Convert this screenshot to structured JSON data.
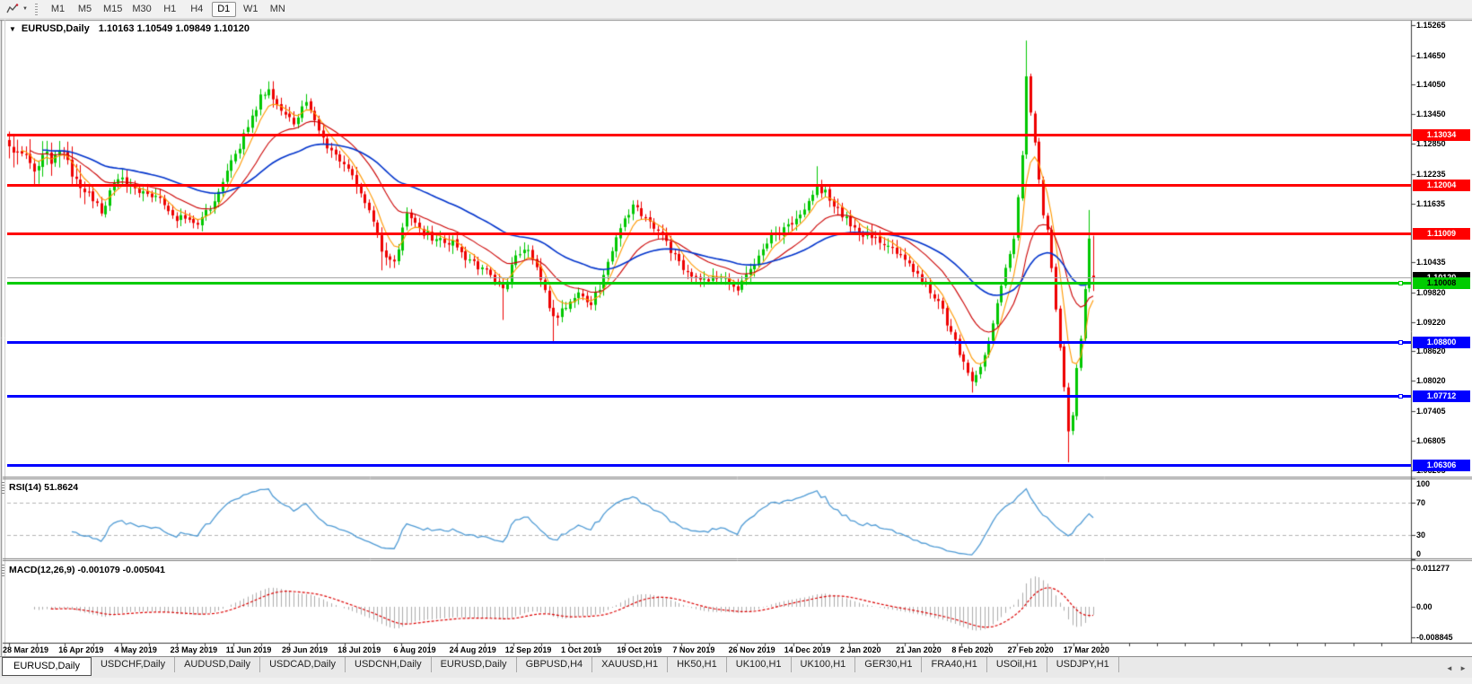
{
  "colors": {
    "up": "#00C800",
    "down": "#EE0000",
    "ma_fast": "#FF9900",
    "ma_mid": "#CC0000",
    "ma_slow": "#0033CC",
    "rsi": "#4F9BD5",
    "macd_hist": "#ADADAD",
    "macd_signal": "#DD0000",
    "level_red": "#FF0000",
    "level_green": "#00CC00",
    "level_blue": "#0000FF"
  },
  "toolbar": {
    "timeframes": [
      "M1",
      "M5",
      "M15",
      "M30",
      "H1",
      "H4",
      "D1",
      "W1",
      "MN"
    ],
    "active": "D1",
    "dropdown_glyph": "▼"
  },
  "chart_header": {
    "symbol_period": "EURUSD,Daily",
    "ohlc": "1.10163 1.10549 1.09849 1.10120",
    "collapse_glyph": "▼"
  },
  "price_axis": {
    "ticks": [
      "1.15265",
      "1.14650",
      "1.14050",
      "1.13450",
      "1.12850",
      "1.12235",
      "1.11635",
      "1.10435",
      "1.09820",
      "1.09220",
      "1.08620",
      "1.08020",
      "1.07405",
      "1.06805",
      "1.06205"
    ]
  },
  "current_price": {
    "label": "1.10120",
    "value": 1.1012
  },
  "levels": [
    {
      "price": "1.13034",
      "value": 1.13034,
      "color": "red",
      "handle": false
    },
    {
      "price": "1.12004",
      "value": 1.12004,
      "color": "red",
      "handle": false
    },
    {
      "price": "1.11009",
      "value": 1.11009,
      "color": "red",
      "handle": false
    },
    {
      "price": "1.10008",
      "value": 1.10008,
      "color": "green",
      "handle": true
    },
    {
      "price": "1.08800",
      "value": 1.088,
      "color": "blue",
      "handle": true
    },
    {
      "price": "1.07712",
      "value": 1.07712,
      "color": "blue",
      "handle": true
    },
    {
      "price": "1.06306",
      "value": 1.06306,
      "color": "blue",
      "handle": false
    }
  ],
  "rsi_panel": {
    "name": "RSI(14)",
    "value": "51.8624",
    "ticks": [
      {
        "label": "100",
        "v": 100
      },
      {
        "label": "70",
        "v": 70
      },
      {
        "label": "30",
        "v": 30
      },
      {
        "label": "0",
        "v": 0
      }
    ]
  },
  "macd_panel": {
    "name": "MACD(12,26,9)",
    "values": "-0.001079 -0.005041",
    "ticks": [
      {
        "label": "0.011277",
        "v": 0.011277
      },
      {
        "label": "0.00",
        "v": 0
      },
      {
        "label": "-0.008845",
        "v": -0.008845
      }
    ]
  },
  "tabs": {
    "items": [
      "EURUSD,Daily",
      "USDCHF,Daily",
      "AUDUSD,Daily",
      "USDCAD,Daily",
      "USDCNH,Daily",
      "EURUSD,Daily",
      "GBPUSD,H4",
      "XAUUSD,H1",
      "HK50,H1",
      "UK100,H1",
      "UK100,H1",
      "GER30,H1",
      "FRA40,H1",
      "USOil,H1",
      "USDJPY,H1"
    ],
    "active_index": 0,
    "scroll_left_glyph": "◄",
    "scroll_right_glyph": "►"
  },
  "chart_data": {
    "type": "candlestick",
    "symbol": "EURUSD",
    "period": "Daily",
    "ohlc": {
      "open": 1.10163,
      "high": 1.10549,
      "low": 1.09849,
      "close": 1.1012
    },
    "x_labels": [
      "28 Mar 2019",
      "16 Apr 2019",
      "4 May 2019",
      "23 May 2019",
      "11 Jun 2019",
      "29 Jun 2019",
      "18 Jul 2019",
      "6 Aug 2019",
      "24 Aug 2019",
      "12 Sep 2019",
      "1 Oct 2019",
      "19 Oct 2019",
      "7 Nov 2019",
      "26 Nov 2019",
      "14 Dec 2019",
      "2 Jan 2020",
      "21 Jan 2020",
      "8 Feb 2020",
      "27 Feb 2020",
      "17 Mar 2020"
    ],
    "price_ticks": [
      1.15265,
      1.1465,
      1.1405,
      1.1345,
      1.1285,
      1.12235,
      1.11635,
      1.10435,
      1.0982,
      1.0922,
      1.0862,
      1.0802,
      1.07405,
      1.06805,
      1.06205
    ],
    "visible_price_range": [
      1.0607,
      1.1536
    ],
    "horizontal_lines": [
      {
        "price": 1.13034,
        "color": "red"
      },
      {
        "price": 1.12004,
        "color": "red"
      },
      {
        "price": 1.11009,
        "color": "red"
      },
      {
        "price": 1.10008,
        "color": "green"
      },
      {
        "price": 1.088,
        "color": "blue"
      },
      {
        "price": 1.07712,
        "color": "blue"
      },
      {
        "price": 1.06306,
        "color": "blue"
      }
    ],
    "current_price": 1.1012,
    "indicators": {
      "rsi": {
        "period": 14,
        "last_value": 51.8624,
        "levels": [
          70,
          30
        ],
        "axis": [
          100,
          70,
          30,
          0
        ]
      },
      "macd": {
        "fast": 12,
        "slow": 26,
        "signal": 9,
        "last_macd": -0.001079,
        "last_signal": -0.005041,
        "axis_top": 0.011277,
        "axis_bottom": -0.008845
      },
      "moving_averages": [
        {
          "name": "fast",
          "period": 6
        },
        {
          "name": "mid",
          "period": 18
        },
        {
          "name": "slow",
          "period": 45
        }
      ]
    },
    "candles_approx_path": [
      [
        0,
        1.128
      ],
      [
        6,
        1.124
      ],
      [
        12,
        1.1265
      ],
      [
        18,
        1.1195
      ],
      [
        22,
        1.115
      ],
      [
        26,
        1.1215
      ],
      [
        31,
        1.119
      ],
      [
        36,
        1.1175
      ],
      [
        40,
        1.1135
      ],
      [
        45,
        1.112
      ],
      [
        49,
        1.117
      ],
      [
        52,
        1.1225
      ],
      [
        56,
        1.13
      ],
      [
        60,
        1.138
      ],
      [
        62,
        1.1395
      ],
      [
        65,
        1.1355
      ],
      [
        68,
        1.133
      ],
      [
        71,
        1.1365
      ],
      [
        75,
        1.129
      ],
      [
        78,
        1.127
      ],
      [
        82,
        1.1215
      ],
      [
        86,
        1.115
      ],
      [
        89,
        1.1065
      ],
      [
        92,
        1.104
      ],
      [
        95,
        1.114
      ],
      [
        98,
        1.111
      ],
      [
        102,
        1.109
      ],
      [
        106,
        1.108
      ],
      [
        110,
        1.1045
      ],
      [
        114,
        1.1025
      ],
      [
        118,
        1.099
      ],
      [
        121,
        1.1055
      ],
      [
        124,
        1.1075
      ],
      [
        127,
        1.101
      ],
      [
        130,
        1.093
      ],
      [
        133,
        1.0955
      ],
      [
        136,
        1.0985
      ],
      [
        139,
        1.096
      ],
      [
        142,
        1.101
      ],
      [
        146,
        1.112
      ],
      [
        149,
        1.1155
      ],
      [
        152,
        1.1135
      ],
      [
        155,
        1.1105
      ],
      [
        158,
        1.107
      ],
      [
        161,
        1.1035
      ],
      [
        164,
        1.101
      ],
      [
        167,
        1.1005
      ],
      [
        170,
        1.1015
      ],
      [
        174,
        1.099
      ],
      [
        178,
        1.1035
      ],
      [
        182,
        1.1095
      ],
      [
        186,
        1.1115
      ],
      [
        190,
        1.1145
      ],
      [
        193,
        1.12
      ],
      [
        196,
        1.1175
      ],
      [
        199,
        1.114
      ],
      [
        203,
        1.1105
      ],
      [
        207,
        1.109
      ],
      [
        211,
        1.1075
      ],
      [
        215,
        1.1035
      ],
      [
        219,
        1.1
      ],
      [
        222,
        1.0965
      ],
      [
        225,
        1.09
      ],
      [
        228,
        1.084
      ],
      [
        230,
        1.08
      ],
      [
        232,
        1.083
      ],
      [
        234,
        1.088
      ],
      [
        236,
        1.096
      ],
      [
        238,
        1.103
      ],
      [
        240,
        1.109
      ],
      [
        242,
        1.126
      ],
      [
        243,
        1.142
      ],
      [
        244,
        1.135
      ],
      [
        245,
        1.129
      ],
      [
        246,
        1.121
      ],
      [
        247,
        1.114
      ],
      [
        248,
        1.111
      ],
      [
        249,
        1.103
      ],
      [
        250,
        1.095
      ],
      [
        251,
        1.087
      ],
      [
        252,
        1.079
      ],
      [
        253,
        1.07
      ],
      [
        254,
        1.073
      ],
      [
        255,
        1.083
      ],
      [
        256,
        1.089
      ],
      [
        257,
        1.099
      ],
      [
        258,
        1.109
      ],
      [
        259,
        1.1012
      ]
    ],
    "spikes": [
      {
        "i": 62,
        "high": 1.1412
      },
      {
        "i": 89,
        "low": 1.1027
      },
      {
        "i": 118,
        "low": 1.0926
      },
      {
        "i": 130,
        "low": 1.0879
      },
      {
        "i": 193,
        "high": 1.1239
      },
      {
        "i": 230,
        "low": 1.0778
      },
      {
        "i": 243,
        "high": 1.1495
      },
      {
        "i": 253,
        "low": 1.0636
      },
      {
        "i": 258,
        "high": 1.115
      }
    ]
  }
}
